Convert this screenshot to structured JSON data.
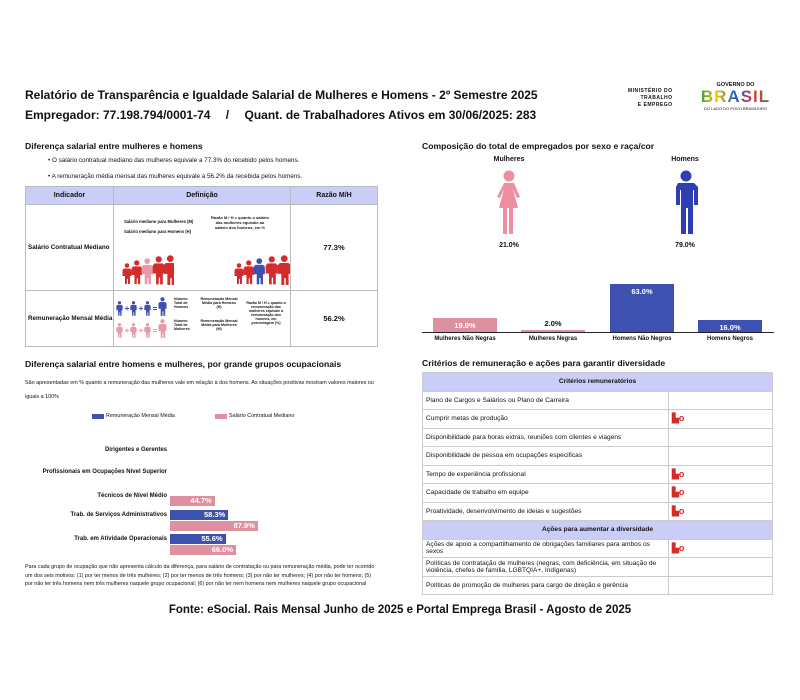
{
  "header": {
    "title": "Relatório de Transparência e Igualdade Salarial de Mulheres e Homens - 2º Semestre 2025",
    "employer": "Empregador: 77.198.794/0001-74",
    "separator": "/",
    "workers": "Quant. de Trabalhadores Ativos em 30/06/2025: 283",
    "logo": {
      "ministry": [
        "MINISTÉRIO DO",
        "TRABALHO",
        "E EMPREGO"
      ],
      "gov": "GOVERNO DO",
      "brasil": "BRASIL",
      "slogan": "DO LADO DO POVO BRASILEIRO"
    }
  },
  "gap": {
    "title": "Diferença salarial entre mulheres e homens",
    "bullets": [
      "• O salário contratual mediano das mulheres equivale a 77.3% do recebido pelos homens.",
      "• A remuneração média mensal das mulheres equivale a 56.2% da recebida pelos homens."
    ],
    "table": {
      "headers": [
        "Indicador",
        "Definição",
        "Razão M/H"
      ],
      "rows": [
        {
          "indicator": "Salário Contratual Mediano",
          "ratio": "77.3%",
          "def": [
            "Salário mediano para Mulheres (M)",
            "Salário mediano para Homens (H)",
            "Razão M / H = quanto o salário das mulheres equivale ao salário dos homens, em %"
          ]
        },
        {
          "indicator": "Remuneração Mensal Média",
          "ratio": "56.2%",
          "def": [
            "Número Total de Homens",
            "Remuneração Mensal Média para Homens (H)",
            "Número Total de Mulheres",
            "Remuneração Mensal Média para Mulheres (M)",
            "Razão M / H = quanto a remuneração das mulheres equivale à remuneração dos homens, em porcentagem (%)"
          ]
        }
      ]
    }
  },
  "occupations": {
    "title": "Diferença salarial entre homens e mulheres, por grande grupos ocupacionais",
    "subtitle": "São apresentadas em % quanto a remuneração das mulheres vale em relação à dos homens. As situações positivas mostram valores maiores ou iguais a 100%",
    "footnote": "Para cada grupo de ocupação que não apresenta cálculo da diferença, para salário de contratação ou para remuneração média, pode ter ocorrido um dos seis motivos: (1) por ter menos de três mulheres; (2) por ter menos de três homens; (3) por não ter mulheres; (4) por não ter homens; (5) por não ter três homens nem três mulheres naquele grupo ocupacional; (6) por não ter nem homens nem mulheres naquele grupo ocupacional"
  },
  "composition": {
    "title": "Composição do total de empregados por sexo e raça/cor",
    "women_label": "Mulheres",
    "men_label": "Homens",
    "women_pct": "21.0%",
    "men_pct": "79.0%"
  },
  "criteria": {
    "title": "Critérios de remuneração e ações para garantir diversidade",
    "section1": "Critérios remuneratórios",
    "items1": [
      {
        "label": "Plano de Cargos e Salários ou Plano de Carreira",
        "checked": false
      },
      {
        "label": "Cumprir metas de produção",
        "checked": true
      },
      {
        "label": "Disponibilidade para horas extras, reuniões com clientes e viagens",
        "checked": false
      },
      {
        "label": "Disponibilidade de pessoa em ocupações especificas",
        "checked": false
      },
      {
        "label": "Tempo de experiência profissional",
        "checked": true
      },
      {
        "label": "Capacidade de trabalho em equipe",
        "checked": true
      },
      {
        "label": "Proatividade, desenvolvimento de ideias e sugestões",
        "checked": true
      }
    ],
    "section2": "Ações para aumentar a diversidade",
    "items2": [
      {
        "label": "Ações de apoio a compartilhamento de obrigações familiares para ambos os sexos",
        "checked": true
      },
      {
        "label": "Políticas de contratação de mulheres (negras, com deficiência, em situação de violência, chefes de família, LGBTQIA+, Indígenas)",
        "checked": false
      },
      {
        "label": "Políticas de promoção de mulheres para cargo de direção e gerência",
        "checked": false
      }
    ]
  },
  "footer": "Fonte: eSocial. Rais Mensal Junho de 2025 e Portal Emprega Brasil - Agosto de 2025",
  "chart_data": [
    {
      "type": "bar",
      "title": "Composição do total de empregados por sexo e raça/cor",
      "categories": [
        "Mulheres Não Negras",
        "Mulheres Negras",
        "Homens Não Negros",
        "Homens Negros"
      ],
      "values": [
        19.0,
        2.0,
        63.0,
        16.0
      ],
      "labels": [
        "19.0%",
        "2.0%",
        "63.0%",
        "16.0%"
      ],
      "colors": [
        "#de8fa0",
        "#de8fa0",
        "#3f51b0",
        "#3f51b0"
      ]
    },
    {
      "type": "bar",
      "orientation": "horizontal",
      "legend": [
        "Remuneração Mensal Média",
        "Salário Contratual Mediano"
      ],
      "colors": [
        "#3f51b0",
        "#de8fa0"
      ],
      "categories": [
        "Dirigentes e Gerentes",
        "Profissionais em Ocupações Nível Superior",
        "Técnicos de Nível Médio",
        "Trab. de Serviços Administrativos",
        "Trab. em Atividade Operacionais"
      ],
      "series": [
        {
          "name": "Remuneração Mensal Média",
          "values": [
            null,
            null,
            null,
            58.3,
            55.6
          ],
          "labels": [
            "",
            "",
            "",
            "58.3%",
            "55.6%"
          ]
        },
        {
          "name": "Salário Contratual Mediano",
          "values": [
            null,
            null,
            44.7,
            87.9,
            66.0
          ],
          "labels": [
            "",
            "",
            "44.7%",
            "87.9%",
            "66.0%"
          ]
        }
      ]
    }
  ]
}
